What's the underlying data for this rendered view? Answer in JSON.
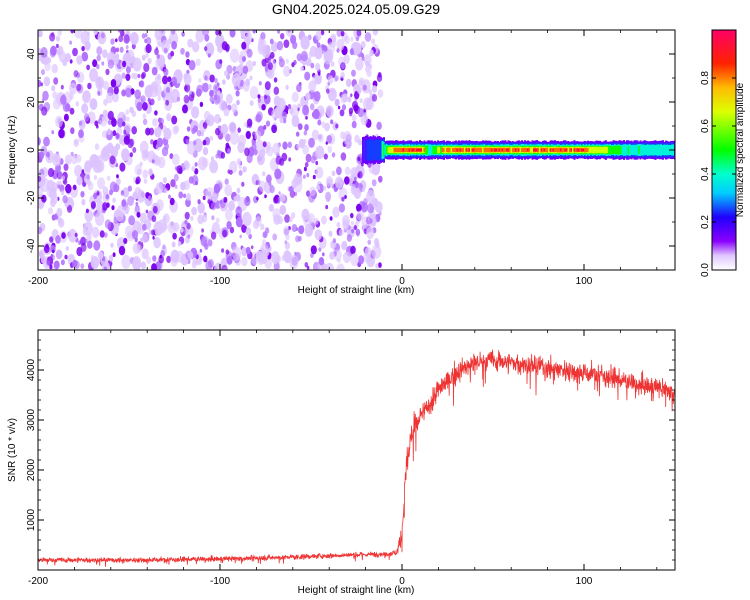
{
  "title": "GN04.2025.024.05.09.G29",
  "chart_data": [
    {
      "type": "heatmap",
      "xlabel": "Height of straight line (km)",
      "ylabel": "Frequency (Hz)",
      "xlim": [
        -200,
        150
      ],
      "ylim": [
        -50,
        50
      ],
      "xticks": [
        -200,
        -100,
        0,
        100
      ],
      "yticks": [
        -40,
        -20,
        0,
        20,
        40
      ],
      "colorbar": {
        "label": "Normalized spectral amplitude",
        "range": [
          0,
          1
        ],
        "ticks": [
          0.0,
          0.2,
          0.4,
          0.6,
          0.8
        ],
        "colors": [
          "#ffffff",
          "#8a00ff",
          "#0000ff",
          "#00ffff",
          "#00ff00",
          "#ffff00",
          "#ff0000",
          "#ff0066"
        ]
      },
      "noise_region": {
        "x_range": [
          -200,
          -15
        ],
        "y_range": [
          -50,
          50
        ],
        "amplitude_range": [
          0.0,
          0.12
        ]
      },
      "signal_band": {
        "x_range": [
          -22,
          150
        ],
        "center_frequency": 0,
        "peak_amplitude": 0.95,
        "profile": [
          {
            "x": -22,
            "amplitude": 0.2
          },
          {
            "x": -12,
            "amplitude": 0.35
          },
          {
            "x": -5,
            "amplitude": 0.85
          },
          {
            "x": 10,
            "amplitude": 0.9
          },
          {
            "x": 15,
            "amplitude": 0.4
          },
          {
            "x": 25,
            "amplitude": 0.9
          },
          {
            "x": 60,
            "amplitude": 0.88
          },
          {
            "x": 100,
            "amplitude": 0.9
          },
          {
            "x": 120,
            "amplitude": 0.5
          },
          {
            "x": 150,
            "amplitude": 0.4
          }
        ]
      }
    },
    {
      "type": "line",
      "xlabel": "Height of straight line (km)",
      "ylabel": "SNR (10 * v/v)",
      "xlim": [
        -200,
        150
      ],
      "ylim": [
        0,
        4800
      ],
      "xticks": [
        -200,
        -100,
        0,
        100
      ],
      "yticks": [
        1000,
        2000,
        3000,
        4000
      ],
      "color": "#ee3333",
      "series": [
        {
          "x": [
            -200,
            -150,
            -100,
            -60,
            -30,
            -10,
            -3,
            0,
            2,
            5,
            10,
            15,
            20,
            30,
            40,
            50,
            60,
            70,
            80,
            90,
            100,
            110,
            120,
            130,
            140,
            150
          ],
          "y": [
            200,
            200,
            220,
            260,
            300,
            320,
            350,
            700,
            1900,
            2700,
            3050,
            3300,
            3600,
            3950,
            4150,
            4200,
            4150,
            4100,
            4050,
            4000,
            3950,
            3900,
            3800,
            3700,
            3650,
            3550
          ],
          "noise": [
            60,
            60,
            60,
            60,
            60,
            60,
            80,
            300,
            400,
            350,
            300,
            250,
            250,
            250,
            250,
            250,
            250,
            250,
            250,
            250,
            250,
            250,
            230,
            220,
            220,
            220
          ]
        }
      ]
    }
  ]
}
